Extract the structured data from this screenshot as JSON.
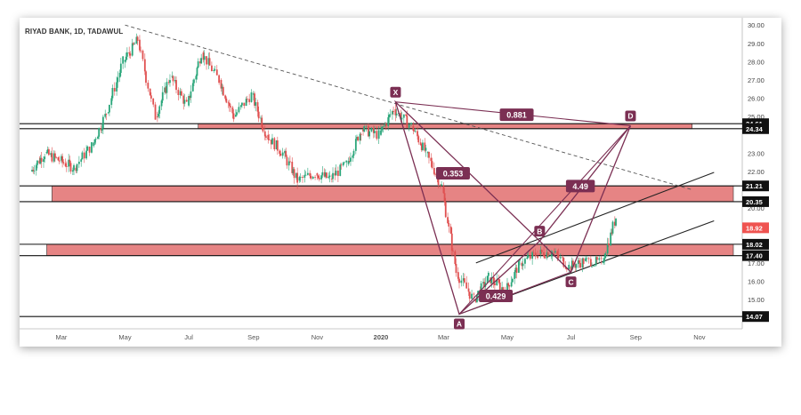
{
  "chart_data": {
    "type": "candlestick",
    "title": "RIYAD BANK, 1D, TADAWUL",
    "x_ticks": [
      "Mar",
      "May",
      "Jul",
      "Sep",
      "Nov",
      "2020",
      "Mar",
      "May",
      "Jul",
      "Sep",
      "Nov"
    ],
    "y_ticks": [
      "30.00",
      "29.00",
      "28.00",
      "27.00",
      "26.00",
      "25.00",
      "23.00",
      "22.00",
      "20.00",
      "17.00",
      "16.00",
      "15.00"
    ],
    "ylim": [
      13.4,
      30.4
    ],
    "price_labels": [
      {
        "value": 24.61,
        "text": "24.61"
      },
      {
        "value": 24.34,
        "text": "24.34"
      },
      {
        "value": 21.21,
        "text": "21.21"
      },
      {
        "value": 20.35,
        "text": "20.35"
      },
      {
        "value": 18.92,
        "text": "18.92",
        "highlight": true
      },
      {
        "value": 18.02,
        "text": "18.02"
      },
      {
        "value": 17.4,
        "text": "17.40"
      },
      {
        "value": 14.07,
        "text": "14.07"
      }
    ],
    "pattern_points": [
      {
        "label": "X",
        "date": "2020-01-15",
        "price": 25.8
      },
      {
        "label": "A",
        "date": "2020-03-16",
        "price": 14.2
      },
      {
        "label": "B",
        "date": "2020-06-01",
        "price": 18.2
      },
      {
        "label": "C",
        "date": "2020-07-01",
        "price": 16.5
      },
      {
        "label": "D",
        "date": "2020-08-27",
        "price": 24.5
      }
    ],
    "ratios": [
      {
        "text": "0.881",
        "date": "2020-05-10",
        "price": 25.1
      },
      {
        "text": "0.353",
        "date": "2020-03-10",
        "price": 21.9
      },
      {
        "text": "4.49",
        "date": "2020-07-10",
        "price": 21.2
      },
      {
        "text": "0.429",
        "date": "2020-04-20",
        "price": 15.2
      }
    ],
    "zones": [
      {
        "top": 24.61,
        "bottom": 24.34
      },
      {
        "top": 21.21,
        "bottom": 20.35
      },
      {
        "top": 18.02,
        "bottom": 17.4
      }
    ],
    "lines": [
      {
        "name": "support",
        "price": 14.07
      },
      {
        "name": "downtrend",
        "from": {
          "date": "2019-05-01",
          "price": 30.0
        },
        "to": {
          "date": "2020-10-25",
          "price": 21.0
        }
      },
      {
        "name": "channel-upper",
        "from": {
          "date": "2020-04-01",
          "price": 17.0
        },
        "to": {
          "date": "2020-11-15",
          "price": 21.95
        }
      },
      {
        "name": "channel-lower",
        "from": {
          "date": "2020-03-16",
          "price": 14.2
        },
        "to": {
          "date": "2020-11-15",
          "price": 19.3
        }
      }
    ],
    "ohlc": [
      [
        "2019-02-01",
        22.0,
        23.2,
        21.7,
        23.0
      ],
      [
        "2019-02-15",
        23.0,
        23.6,
        22.4,
        22.6
      ],
      [
        "2019-03-01",
        22.6,
        23.0,
        21.8,
        22.2
      ],
      [
        "2019-03-15",
        22.2,
        23.6,
        21.9,
        23.4
      ],
      [
        "2019-04-01",
        23.4,
        25.5,
        23.2,
        25.2
      ],
      [
        "2019-04-15",
        25.2,
        28.3,
        25.0,
        28.0
      ],
      [
        "2019-05-01",
        28.0,
        30.0,
        27.6,
        29.2
      ],
      [
        "2019-05-15",
        29.2,
        29.5,
        23.8,
        25.0
      ],
      [
        "2019-06-01",
        25.0,
        27.8,
        24.7,
        27.2
      ],
      [
        "2019-06-15",
        27.2,
        27.5,
        25.3,
        25.6
      ],
      [
        "2019-07-01",
        25.6,
        29.0,
        25.4,
        28.5
      ],
      [
        "2019-07-15",
        28.5,
        28.8,
        26.6,
        27.0
      ],
      [
        "2019-08-01",
        27.0,
        27.3,
        24.4,
        25.0
      ],
      [
        "2019-08-15",
        25.0,
        26.5,
        24.7,
        26.2
      ],
      [
        "2019-09-01",
        26.2,
        26.4,
        23.7,
        24.0
      ],
      [
        "2019-09-15",
        24.0,
        24.3,
        22.7,
        23.0
      ],
      [
        "2019-10-01",
        23.0,
        23.3,
        21.0,
        21.5
      ],
      [
        "2019-10-15",
        21.5,
        22.2,
        20.8,
        21.9
      ],
      [
        "2019-11-01",
        21.9,
        22.3,
        21.2,
        21.6
      ],
      [
        "2019-11-15",
        21.6,
        22.6,
        21.4,
        22.4
      ],
      [
        "2019-12-01",
        22.4,
        24.7,
        22.3,
        24.3
      ],
      [
        "2019-12-15",
        24.3,
        24.9,
        23.5,
        24.0
      ],
      [
        "2020-01-01",
        24.0,
        25.6,
        23.6,
        25.4
      ],
      [
        "2020-01-15",
        25.4,
        25.8,
        24.2,
        24.5
      ],
      [
        "2020-02-01",
        24.5,
        24.7,
        22.4,
        23.0
      ],
      [
        "2020-02-15",
        23.0,
        23.4,
        20.7,
        21.2
      ],
      [
        "2020-03-01",
        21.2,
        21.4,
        16.0,
        16.5
      ],
      [
        "2020-03-15",
        16.5,
        17.0,
        14.2,
        15.0
      ],
      [
        "2020-04-01",
        15.0,
        16.6,
        14.8,
        16.2
      ],
      [
        "2020-04-15",
        16.2,
        16.5,
        15.1,
        15.5
      ],
      [
        "2020-05-01",
        15.5,
        17.2,
        15.3,
        17.0
      ],
      [
        "2020-05-15",
        17.0,
        17.8,
        16.6,
        17.5
      ],
      [
        "2020-06-01",
        17.5,
        18.2,
        17.1,
        17.6
      ],
      [
        "2020-06-15",
        17.6,
        17.8,
        16.5,
        16.8
      ],
      [
        "2020-07-01",
        16.8,
        17.3,
        16.5,
        17.1
      ],
      [
        "2020-07-15",
        17.1,
        17.4,
        16.8,
        17.0
      ],
      [
        "2020-08-01",
        17.0,
        19.8,
        16.9,
        19.5
      ],
      [
        "2020-08-15",
        19.5,
        19.9,
        18.7,
        18.92
      ]
    ]
  }
}
